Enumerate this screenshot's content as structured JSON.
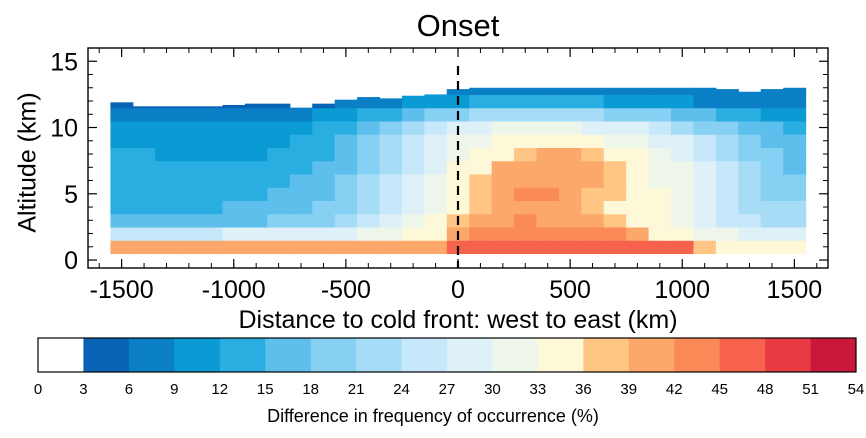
{
  "chart_data": {
    "type": "heatmap",
    "title": "Onset",
    "xlabel": "Distance to cold front: west to east (km)",
    "ylabel": "Altitude (km)",
    "xlim": [
      -1650,
      1650
    ],
    "ylim": [
      -0.6,
      16
    ],
    "xticks": [
      -1500,
      -1000,
      -500,
      0,
      500,
      1000,
      1500
    ],
    "yticks": [
      0,
      5,
      10,
      15
    ],
    "front_line_x": 0,
    "cell_width_km": 100,
    "cell_height_km": 1,
    "x_centers": [
      -1500,
      -1400,
      -1300,
      -1200,
      -1100,
      -1000,
      -900,
      -800,
      -700,
      -600,
      -500,
      -400,
      -300,
      -200,
      -100,
      0,
      100,
      200,
      300,
      400,
      500,
      600,
      700,
      800,
      900,
      1000,
      1100,
      1200,
      1300,
      1400,
      1500
    ],
    "tops_km": [
      11.9,
      11.6,
      11.6,
      11.6,
      11.6,
      11.7,
      11.8,
      11.8,
      11.5,
      11.8,
      12.1,
      12.3,
      12.2,
      12.4,
      12.5,
      12.9,
      13.0,
      13.0,
      13.0,
      13.0,
      13.0,
      13.0,
      13.0,
      13.0,
      13.0,
      13.0,
      13.0,
      12.9,
      12.7,
      12.9,
      13.0
    ],
    "bands_bottom_to_top": [
      {
        "altitude_km": "0.5-1.5",
        "values_pct": [
          40,
          41,
          40,
          40,
          40,
          41,
          41,
          41,
          41,
          41,
          40,
          40,
          40,
          40,
          39,
          45,
          46,
          46,
          46,
          46,
          46,
          46,
          46,
          46,
          46,
          46,
          36,
          35,
          35,
          34,
          34
        ]
      },
      {
        "altitude_km": "1.5-2.5",
        "values_pct": [
          25,
          25,
          25,
          26,
          26,
          27,
          27,
          27,
          28,
          28,
          29,
          30,
          31,
          33,
          34,
          40,
          43,
          44,
          44,
          44,
          44,
          43,
          42,
          40,
          35,
          33,
          31,
          30,
          29,
          29,
          29
        ]
      },
      {
        "altitude_km": "2.5-3.5",
        "values_pct": [
          16,
          16,
          16,
          16,
          16,
          17,
          17,
          18,
          19,
          20,
          22,
          25,
          27,
          30,
          33,
          38,
          40,
          41,
          42,
          41,
          41,
          40,
          38,
          35,
          33,
          30,
          28,
          26,
          24,
          23,
          23
        ]
      },
      {
        "altitude_km": "3.5-4.5",
        "values_pct": [
          14,
          14,
          14,
          14,
          14,
          15,
          15,
          16,
          17,
          18,
          20,
          23,
          25,
          28,
          31,
          35,
          38,
          39,
          40,
          39,
          39,
          38,
          35,
          34,
          33,
          30,
          27,
          25,
          23,
          22,
          22
        ]
      },
      {
        "altitude_km": "4.5-5.5",
        "values_pct": [
          14,
          14,
          14,
          13,
          13,
          14,
          14,
          15,
          16,
          17,
          19,
          22,
          25,
          28,
          31,
          35,
          38,
          39,
          43,
          44,
          41,
          38,
          36,
          35,
          33,
          30,
          27,
          24,
          21,
          20,
          19
        ]
      },
      {
        "altitude_km": "5.5-6.5",
        "values_pct": [
          14,
          14,
          13,
          13,
          13,
          13,
          13,
          14,
          15,
          16,
          18,
          21,
          24,
          27,
          30,
          34,
          38,
          40,
          40,
          40,
          40,
          39,
          37,
          34,
          32,
          30,
          27,
          24,
          21,
          19,
          18
        ]
      },
      {
        "altitude_km": "6.5-7.5",
        "values_pct": [
          13,
          13,
          12,
          12,
          12,
          12,
          12,
          13,
          14,
          15,
          17,
          20,
          23,
          26,
          29,
          33,
          35,
          39,
          40,
          40,
          40,
          39,
          38,
          34,
          32,
          30,
          27,
          24,
          21,
          19,
          17
        ]
      },
      {
        "altitude_km": "7.5-8.5",
        "values_pct": [
          12,
          12,
          11,
          11,
          11,
          11,
          11,
          12,
          13,
          14,
          16,
          19,
          22,
          25,
          28,
          32,
          34,
          34,
          38,
          39,
          39,
          38,
          34,
          33,
          31,
          29,
          26,
          23,
          20,
          18,
          16
        ]
      },
      {
        "altitude_km": "8.5-9.5",
        "values_pct": [
          11,
          11,
          10,
          10,
          10,
          10,
          10,
          11,
          12,
          13,
          15,
          18,
          21,
          24,
          27,
          30,
          32,
          33,
          33,
          33,
          33,
          33,
          32,
          31,
          29,
          27,
          24,
          21,
          18,
          16,
          15
        ]
      },
      {
        "altitude_km": "9.5-10.5",
        "values_pct": [
          9,
          9,
          9,
          9,
          9,
          9,
          9,
          10,
          11,
          12,
          13,
          16,
          19,
          22,
          25,
          27,
          29,
          30,
          30,
          30,
          30,
          29,
          28,
          27,
          25,
          23,
          20,
          18,
          16,
          15,
          14
        ]
      },
      {
        "altitude_km": "10.5-11.5",
        "values_pct": [
          6,
          6,
          6,
          6,
          6,
          6,
          6,
          7,
          8,
          9,
          10,
          12,
          14,
          16,
          18,
          20,
          21,
          22,
          22,
          22,
          21,
          21,
          20,
          19,
          18,
          16,
          15,
          14,
          12,
          11,
          11
        ]
      },
      {
        "altitude_km": "11.5-12.5",
        "values_pct": [
          5,
          5,
          5,
          5,
          5,
          5,
          5,
          5,
          5,
          5,
          6,
          7,
          8,
          9,
          10,
          11,
          12,
          12,
          12,
          12,
          12,
          12,
          11,
          11,
          10,
          9,
          8,
          7,
          6,
          6,
          6
        ]
      },
      {
        "altitude_km": "12.5-13.5",
        "values_pct": [
          5,
          5,
          5,
          5,
          5,
          5,
          5,
          5,
          5,
          5,
          5,
          5,
          5,
          5,
          6,
          7,
          7,
          7,
          7,
          7,
          7,
          7,
          7,
          7,
          7,
          7,
          7,
          7,
          7,
          7,
          7
        ]
      }
    ]
  },
  "colorbar": {
    "ticks": [
      "0",
      "3",
      "6",
      "9",
      "12",
      "15",
      "18",
      "21",
      "24",
      "27",
      "30",
      "33",
      "36",
      "39",
      "42",
      "45",
      "48",
      "51",
      "54"
    ],
    "colors": [
      "#ffffff",
      "#0863b5",
      "#0a7fc6",
      "#0a9ad4",
      "#2aaee2",
      "#5fbfec",
      "#86d0f3",
      "#a7dcf7",
      "#c6e8fa",
      "#dff1f8",
      "#eef6ec",
      "#fdf8d8",
      "#fec585",
      "#fca86a",
      "#fa8a58",
      "#f6624c",
      "#e83a43",
      "#c9183a"
    ],
    "label": "Difference in frequency of occurrence (%)"
  }
}
